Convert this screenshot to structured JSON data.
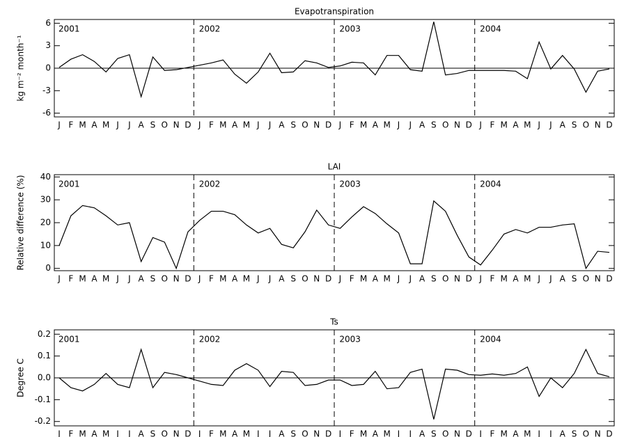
{
  "chart_data": [
    {
      "type": "line",
      "title": "Evapotranspiration",
      "ylabel": "kg m⁻² month⁻¹",
      "color": "#000000",
      "zero_line": true,
      "categories": [
        "J",
        "F",
        "M",
        "A",
        "M",
        "J",
        "J",
        "A",
        "S",
        "O",
        "N",
        "D",
        "J",
        "F",
        "M",
        "A",
        "M",
        "J",
        "J",
        "A",
        "S",
        "O",
        "N",
        "D",
        "J",
        "F",
        "M",
        "A",
        "M",
        "J",
        "J",
        "A",
        "S",
        "O",
        "N",
        "D",
        "J",
        "F",
        "M",
        "A",
        "M",
        "J",
        "J",
        "A",
        "S",
        "O",
        "N",
        "D"
      ],
      "values": [
        0.1,
        1.2,
        1.8,
        0.9,
        -0.5,
        1.3,
        1.8,
        -3.8,
        1.5,
        -0.3,
        -0.2,
        0.1,
        0.4,
        0.7,
        1.1,
        -0.8,
        -2.0,
        -0.5,
        2.0,
        -0.6,
        -0.5,
        1.0,
        0.7,
        0.1,
        0.3,
        0.8,
        0.7,
        -0.9,
        1.7,
        1.7,
        -0.2,
        -0.4,
        6.2,
        -0.9,
        -0.7,
        -0.3,
        -0.3,
        -0.3,
        -0.3,
        -0.4,
        -1.4,
        3.5,
        -0.1,
        1.7,
        -0.1,
        -3.2,
        -0.4,
        -0.1
      ],
      "ylim": [
        -6.5,
        6.5
      ],
      "yticks": [
        -6,
        -3,
        0,
        3,
        6
      ],
      "annotations": [
        "2001",
        "2002",
        "2003",
        "2004"
      ]
    },
    {
      "type": "line",
      "title": "LAI",
      "ylabel": "Relative difference (%)",
      "color": "#000000",
      "zero_line": false,
      "categories": [
        "J",
        "F",
        "M",
        "A",
        "M",
        "J",
        "J",
        "A",
        "S",
        "O",
        "N",
        "D",
        "J",
        "F",
        "M",
        "A",
        "M",
        "J",
        "J",
        "A",
        "S",
        "O",
        "N",
        "D",
        "J",
        "F",
        "M",
        "A",
        "M",
        "J",
        "J",
        "A",
        "S",
        "O",
        "N",
        "D",
        "J",
        "F",
        "M",
        "A",
        "M",
        "J",
        "J",
        "A",
        "S",
        "O",
        "N",
        "D"
      ],
      "values": [
        10,
        23,
        27.5,
        26.5,
        23,
        19,
        20,
        3,
        13.5,
        11.5,
        0,
        16,
        21,
        25,
        25,
        23.5,
        19,
        15.5,
        17.5,
        10.5,
        9,
        16,
        25.5,
        19,
        17.5,
        22.5,
        27,
        24,
        19.5,
        15.5,
        2,
        2,
        29.5,
        25,
        14.5,
        5,
        1.5,
        8,
        15,
        17,
        15.5,
        18,
        18,
        19,
        19.5,
        0,
        7.5,
        7
      ],
      "ylim": [
        -1,
        41
      ],
      "yticks": [
        0,
        10,
        20,
        30,
        40
      ],
      "annotations": [
        "2001",
        "2002",
        "2003",
        "2004"
      ]
    },
    {
      "type": "line",
      "title": "Ts",
      "ylabel": "Degree C",
      "color": "#000000",
      "zero_line": true,
      "categories": [
        "J",
        "F",
        "M",
        "A",
        "M",
        "J",
        "J",
        "A",
        "S",
        "O",
        "N",
        "D",
        "J",
        "F",
        "M",
        "A",
        "M",
        "J",
        "J",
        "A",
        "S",
        "O",
        "N",
        "D",
        "J",
        "F",
        "M",
        "A",
        "M",
        "J",
        "J",
        "A",
        "S",
        "O",
        "N",
        "D",
        "J",
        "F",
        "M",
        "A",
        "M",
        "J",
        "J",
        "A",
        "S",
        "O",
        "N",
        "D"
      ],
      "values": [
        0.0,
        -0.045,
        -0.06,
        -0.03,
        0.02,
        -0.03,
        -0.045,
        0.13,
        -0.045,
        0.025,
        0.015,
        0.0,
        -0.015,
        -0.03,
        -0.035,
        0.035,
        0.065,
        0.035,
        -0.04,
        0.03,
        0.025,
        -0.035,
        -0.03,
        -0.01,
        -0.01,
        -0.035,
        -0.03,
        0.03,
        -0.05,
        -0.045,
        0.025,
        0.04,
        -0.19,
        0.04,
        0.035,
        0.015,
        0.012,
        0.018,
        0.012,
        0.02,
        0.05,
        -0.085,
        0.0,
        -0.045,
        0.02,
        0.13,
        0.02,
        0.005
      ],
      "ylim": [
        -0.22,
        0.22
      ],
      "yticks": [
        -0.2,
        -0.1,
        {
          "value": 0,
          "label": "0.0"
        },
        0.1,
        0.2
      ],
      "annotations": [
        "2001",
        "2002",
        "2003",
        "2004"
      ]
    }
  ]
}
